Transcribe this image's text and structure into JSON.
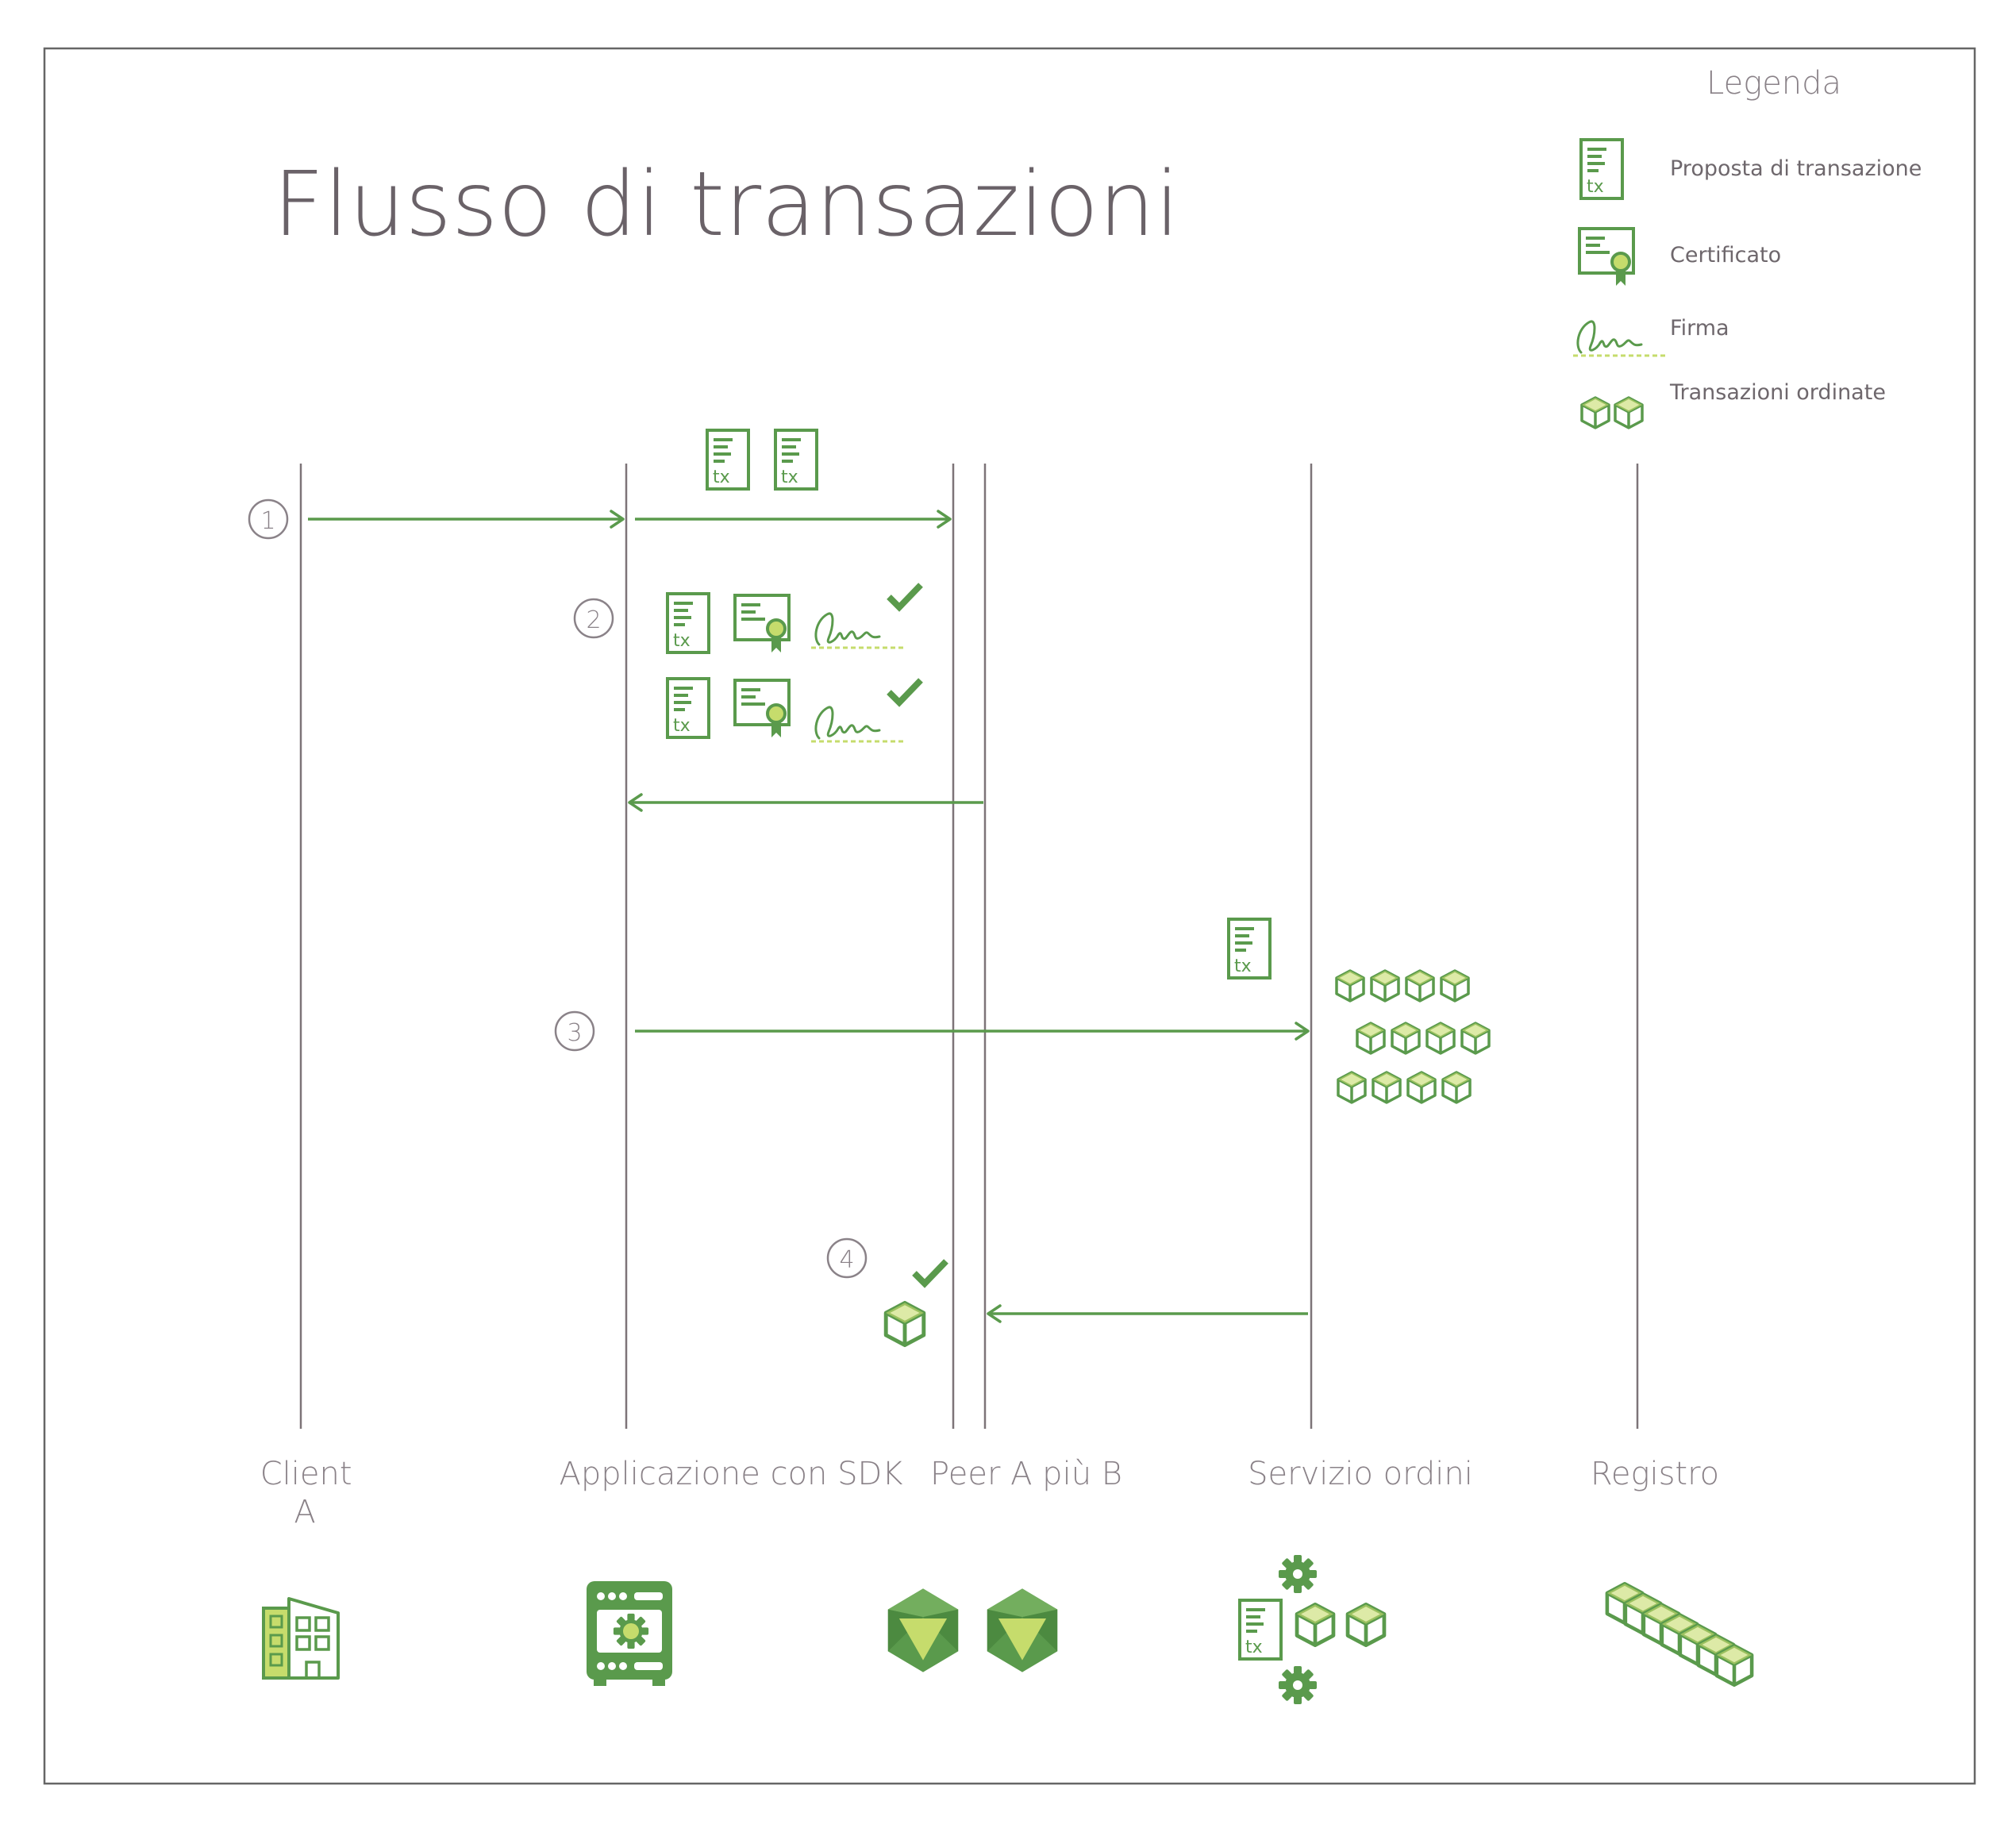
{
  "title": "Flusso di transazioni",
  "legend": {
    "heading": "Legenda",
    "items": [
      {
        "label": "Proposta di transazione",
        "icon": "tx-document-icon"
      },
      {
        "label": "Certificato",
        "icon": "certificate-icon"
      },
      {
        "label": "Firma",
        "icon": "signature-icon"
      },
      {
        "label": "Transazioni ordinate",
        "icon": "ordered-blocks-icon"
      }
    ]
  },
  "lanes": [
    {
      "label_lines": [
        "Client",
        "A"
      ],
      "icon": "office-building-icon"
    },
    {
      "label_lines": [
        "Applicazione con SDK"
      ],
      "icon": "sdk-server-icon"
    },
    {
      "label_lines": [
        "Peer A più B"
      ],
      "icon": "peer-node-icon"
    },
    {
      "label_lines": [
        "Servizio ordini"
      ],
      "icon": "ordering-service-icon"
    },
    {
      "label_lines": [
        "Registro"
      ],
      "icon": "ledger-chain-icon"
    }
  ],
  "steps": [
    "1",
    "2",
    "3",
    "4"
  ],
  "tx_label": "tx",
  "colors": {
    "green": "#5a9a4c",
    "light_green": "#c6dc6c",
    "line": "#7d7478",
    "text": "#8a8288",
    "border": "#666666"
  }
}
